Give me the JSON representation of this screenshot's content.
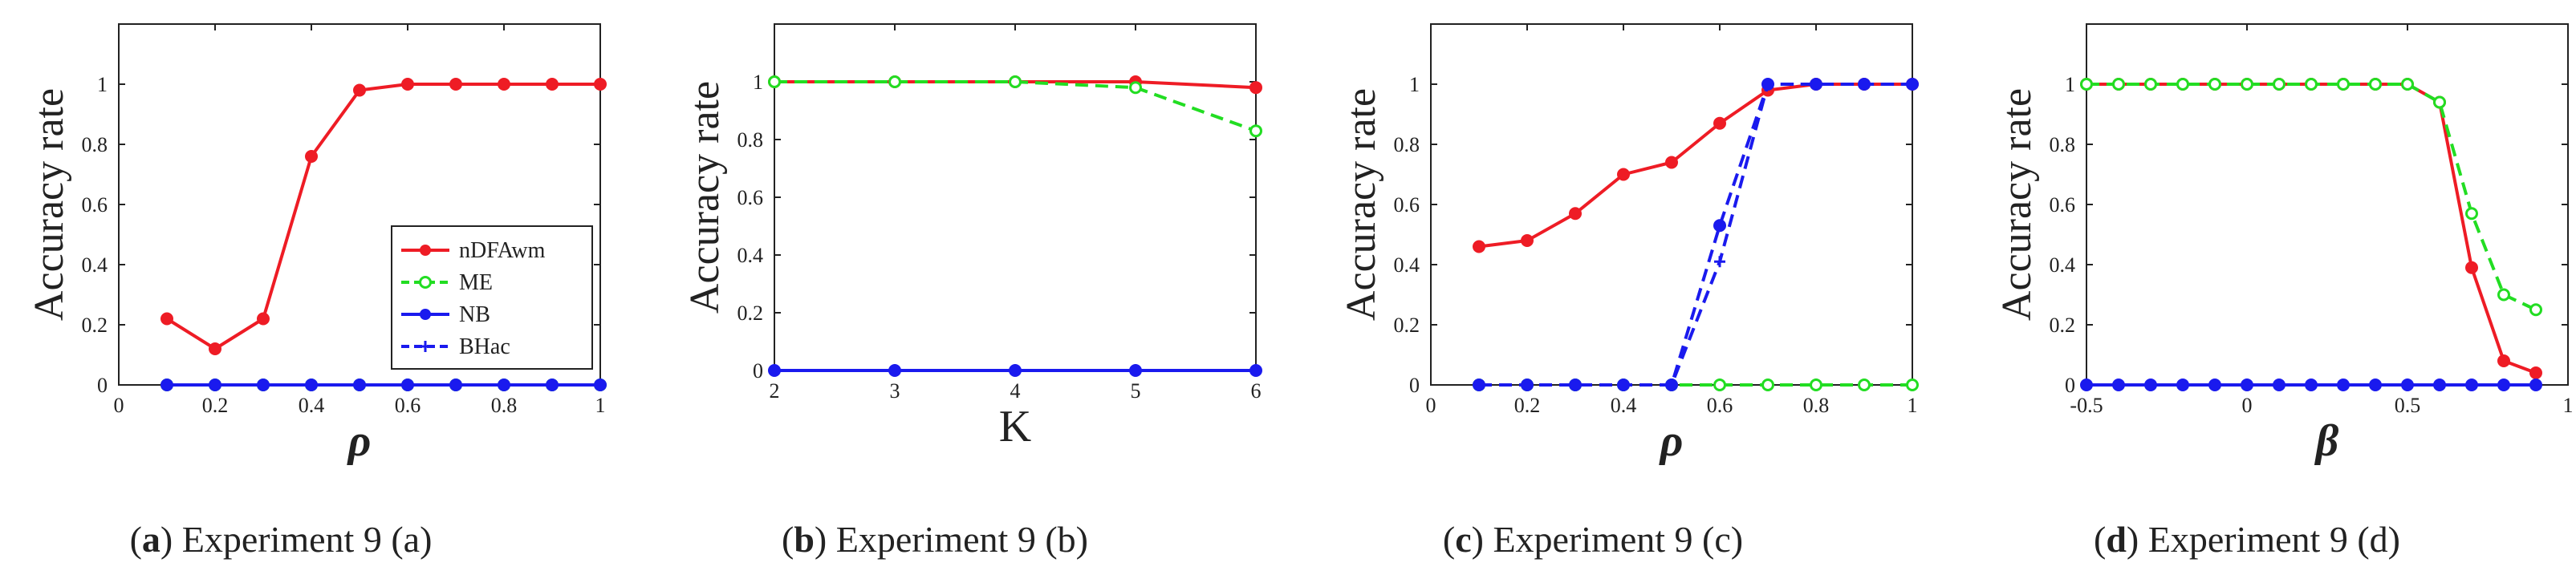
{
  "chart_data": [
    {
      "type": "line",
      "caption_id": "a",
      "caption_text": "Experiment 9 (a)",
      "xlabel": "ρ",
      "xlabel_style": "greek",
      "ylabel": "Accuracy rate",
      "xlim": [
        0,
        1
      ],
      "ylim": [
        0,
        1.2
      ],
      "xticks": [
        0,
        0.2,
        0.4,
        0.6,
        0.8,
        1
      ],
      "xtick_labels": [
        "0",
        "0.2",
        "0.4",
        "0.6",
        "0.8",
        "1"
      ],
      "yticks": [
        0,
        0.2,
        0.4,
        0.6,
        0.8,
        1
      ],
      "ytick_labels": [
        "0",
        "0.2",
        "0.4",
        "0.6",
        "0.8",
        "1"
      ],
      "legend": {
        "placement": "lower-right",
        "entries": [
          "nDFAwm",
          "ME",
          "NB",
          "BHac"
        ]
      },
      "series": [
        {
          "name": "nDFAwm",
          "color": "#ee1c25",
          "style": "solid",
          "marker": "dot",
          "x": [
            0.1,
            0.2,
            0.3,
            0.4,
            0.5,
            0.6,
            0.7,
            0.8,
            0.9,
            1.0
          ],
          "y": [
            0.22,
            0.12,
            0.22,
            0.76,
            0.98,
            1,
            1,
            1,
            1,
            1
          ]
        },
        {
          "name": "ME",
          "color": "#22dd22",
          "style": "dashed",
          "marker": "circle",
          "x": [
            0.1,
            0.2,
            0.3,
            0.4,
            0.5,
            0.6,
            0.7,
            0.8,
            0.9,
            1.0
          ],
          "y": [
            0,
            0,
            0,
            0,
            0,
            0,
            0,
            0,
            0,
            0
          ]
        },
        {
          "name": "NB",
          "color": "#1a1aee",
          "style": "solid",
          "marker": "dot",
          "x": [
            0.1,
            0.2,
            0.3,
            0.4,
            0.5,
            0.6,
            0.7,
            0.8,
            0.9,
            1.0
          ],
          "y": [
            0,
            0,
            0,
            0,
            0,
            0,
            0,
            0,
            0,
            0
          ]
        },
        {
          "name": "BHac",
          "color": "#1a1aee",
          "style": "dashed",
          "marker": "plus",
          "x": [
            0.1,
            0.2,
            0.3,
            0.4,
            0.5,
            0.6,
            0.7,
            0.8,
            0.9,
            1.0
          ],
          "y": [
            0,
            0,
            0,
            0,
            0,
            0,
            0,
            0,
            0,
            0
          ]
        }
      ]
    },
    {
      "type": "line",
      "caption_id": "b",
      "caption_text": "Experiment 9 (b)",
      "xlabel": "K",
      "xlabel_style": "plain",
      "ylabel": "Accuracy rate",
      "xlim": [
        2,
        6
      ],
      "ylim": [
        0,
        1.2
      ],
      "xticks": [
        2,
        3,
        4,
        5,
        6
      ],
      "xtick_labels": [
        "2",
        "3",
        "4",
        "5",
        "6"
      ],
      "yticks": [
        0,
        0.2,
        0.4,
        0.6,
        0.8,
        1
      ],
      "ytick_labels": [
        "0",
        "0.2",
        "0.4",
        "0.6",
        "0.8",
        "1"
      ],
      "series": [
        {
          "name": "nDFAwm",
          "color": "#ee1c25",
          "style": "solid",
          "marker": "dot",
          "x": [
            2,
            3,
            4,
            5,
            6
          ],
          "y": [
            1,
            1,
            1,
            1,
            0.98
          ]
        },
        {
          "name": "ME",
          "color": "#22dd22",
          "style": "dashed",
          "marker": "circle",
          "x": [
            2,
            3,
            4,
            5,
            6
          ],
          "y": [
            1,
            1,
            1,
            0.98,
            0.83
          ]
        },
        {
          "name": "NB",
          "color": "#1a1aee",
          "style": "solid",
          "marker": "dot",
          "x": [
            2,
            3,
            4,
            5,
            6
          ],
          "y": [
            0,
            0,
            0,
            0,
            0
          ]
        },
        {
          "name": "BHac",
          "color": "#1a1aee",
          "style": "dashed",
          "marker": "plus",
          "x": [
            2,
            3,
            4,
            5,
            6
          ],
          "y": [
            0,
            0,
            0,
            0,
            0
          ]
        }
      ]
    },
    {
      "type": "line",
      "caption_id": "c",
      "caption_text": "Experiment 9 (c)",
      "xlabel": "ρ",
      "xlabel_style": "greek",
      "ylabel": "Accuracy rate",
      "xlim": [
        0,
        1
      ],
      "ylim": [
        0,
        1.2
      ],
      "xticks": [
        0,
        0.2,
        0.4,
        0.6,
        0.8,
        1
      ],
      "xtick_labels": [
        "0",
        "0.2",
        "0.4",
        "0.6",
        "0.8",
        "1"
      ],
      "yticks": [
        0,
        0.2,
        0.4,
        0.6,
        0.8,
        1
      ],
      "ytick_labels": [
        "0",
        "0.2",
        "0.4",
        "0.6",
        "0.8",
        "1"
      ],
      "series": [
        {
          "name": "nDFAwm",
          "color": "#ee1c25",
          "style": "solid",
          "marker": "dot",
          "x": [
            0.1,
            0.2,
            0.3,
            0.4,
            0.5,
            0.6,
            0.7,
            0.8,
            0.9,
            1.0
          ],
          "y": [
            0.46,
            0.48,
            0.57,
            0.7,
            0.74,
            0.87,
            0.98,
            1,
            1,
            1
          ]
        },
        {
          "name": "ME",
          "color": "#22dd22",
          "style": "dashed",
          "marker": "circle",
          "x": [
            0.1,
            0.2,
            0.3,
            0.4,
            0.5,
            0.6,
            0.7,
            0.8,
            0.9,
            1.0
          ],
          "y": [
            0,
            0,
            0,
            0,
            0,
            0,
            0,
            0,
            0,
            0
          ]
        },
        {
          "name": "NB",
          "color": "#1a1aee",
          "style": "dashed",
          "marker": "dot",
          "x": [
            0.1,
            0.2,
            0.3,
            0.4,
            0.5,
            0.6,
            0.7,
            0.8,
            0.9,
            1.0
          ],
          "y": [
            0,
            0,
            0,
            0,
            0,
            0.53,
            1,
            1,
            1,
            1
          ]
        },
        {
          "name": "BHac",
          "color": "#1a1aee",
          "style": "dashed",
          "marker": "plus",
          "x": [
            0.1,
            0.2,
            0.3,
            0.4,
            0.5,
            0.6,
            0.7,
            0.8,
            0.9,
            1.0
          ],
          "y": [
            0,
            0,
            0,
            0,
            0,
            0.41,
            1,
            1,
            1,
            1
          ]
        }
      ]
    },
    {
      "type": "line",
      "caption_id": "d",
      "caption_text": "Experiment 9 (d)",
      "xlabel": "β",
      "xlabel_style": "greek",
      "ylabel": "Accuracy rate",
      "xlim": [
        -0.5,
        1
      ],
      "ylim": [
        0,
        1.2
      ],
      "xticks": [
        -0.5,
        0,
        0.5,
        1
      ],
      "xtick_labels": [
        "-0.5",
        "0",
        "0.5",
        "1"
      ],
      "yticks": [
        0,
        0.2,
        0.4,
        0.6,
        0.8,
        1
      ],
      "ytick_labels": [
        "0",
        "0.2",
        "0.4",
        "0.6",
        "0.8",
        "1"
      ],
      "series": [
        {
          "name": "nDFAwm",
          "color": "#ee1c25",
          "style": "solid",
          "marker": "dot",
          "x": [
            -0.5,
            -0.4,
            -0.3,
            -0.2,
            -0.1,
            0,
            0.1,
            0.2,
            0.3,
            0.4,
            0.5,
            0.6,
            0.7,
            0.8,
            0.9
          ],
          "y": [
            1,
            1,
            1,
            1,
            1,
            1,
            1,
            1,
            1,
            1,
            1,
            0.94,
            0.39,
            0.08,
            0.04
          ]
        },
        {
          "name": "ME",
          "color": "#22dd22",
          "style": "dashed",
          "marker": "circle",
          "x": [
            -0.5,
            -0.4,
            -0.3,
            -0.2,
            -0.1,
            0,
            0.1,
            0.2,
            0.3,
            0.4,
            0.5,
            0.6,
            0.7,
            0.8,
            0.9
          ],
          "y": [
            1,
            1,
            1,
            1,
            1,
            1,
            1,
            1,
            1,
            1,
            1,
            0.94,
            0.57,
            0.3,
            0.25
          ]
        },
        {
          "name": "NB",
          "color": "#1a1aee",
          "style": "solid",
          "marker": "dot",
          "x": [
            -0.5,
            -0.4,
            -0.3,
            -0.2,
            -0.1,
            0,
            0.1,
            0.2,
            0.3,
            0.4,
            0.5,
            0.6,
            0.7,
            0.8,
            0.9
          ],
          "y": [
            0,
            0,
            0,
            0,
            0,
            0,
            0,
            0,
            0,
            0,
            0,
            0,
            0,
            0,
            0
          ]
        },
        {
          "name": "BHac",
          "color": "#1a1aee",
          "style": "dashed",
          "marker": "plus",
          "x": [
            -0.5,
            -0.4,
            -0.3,
            -0.2,
            -0.1,
            0,
            0.1,
            0.2,
            0.3,
            0.4,
            0.5,
            0.6,
            0.7,
            0.8,
            0.9
          ],
          "y": [
            0,
            0,
            0,
            0,
            0,
            0,
            0,
            0,
            0,
            0,
            0,
            0,
            0,
            0,
            0
          ]
        }
      ]
    }
  ]
}
